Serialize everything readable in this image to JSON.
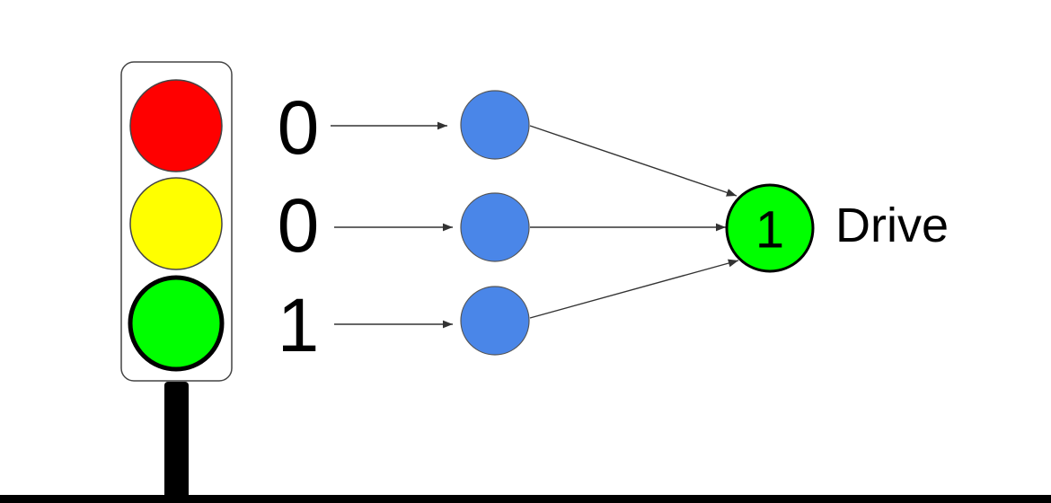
{
  "traffic_light": {
    "lamps": [
      {
        "name": "red",
        "color": "#ff0000",
        "active": false
      },
      {
        "name": "yellow",
        "color": "#ffff00",
        "active": false
      },
      {
        "name": "green",
        "color": "#00ff00",
        "active": true
      }
    ],
    "housing_color": "#ffffff",
    "pole_color": "#000000"
  },
  "inputs": [
    {
      "value": "0"
    },
    {
      "value": "0"
    },
    {
      "value": "1"
    }
  ],
  "hidden_node_color": "#4a86e8",
  "output": {
    "value": "1",
    "label": "Drive",
    "color": "#00ff00"
  },
  "colors": {
    "edge": "#333333",
    "ground": "#000000"
  }
}
